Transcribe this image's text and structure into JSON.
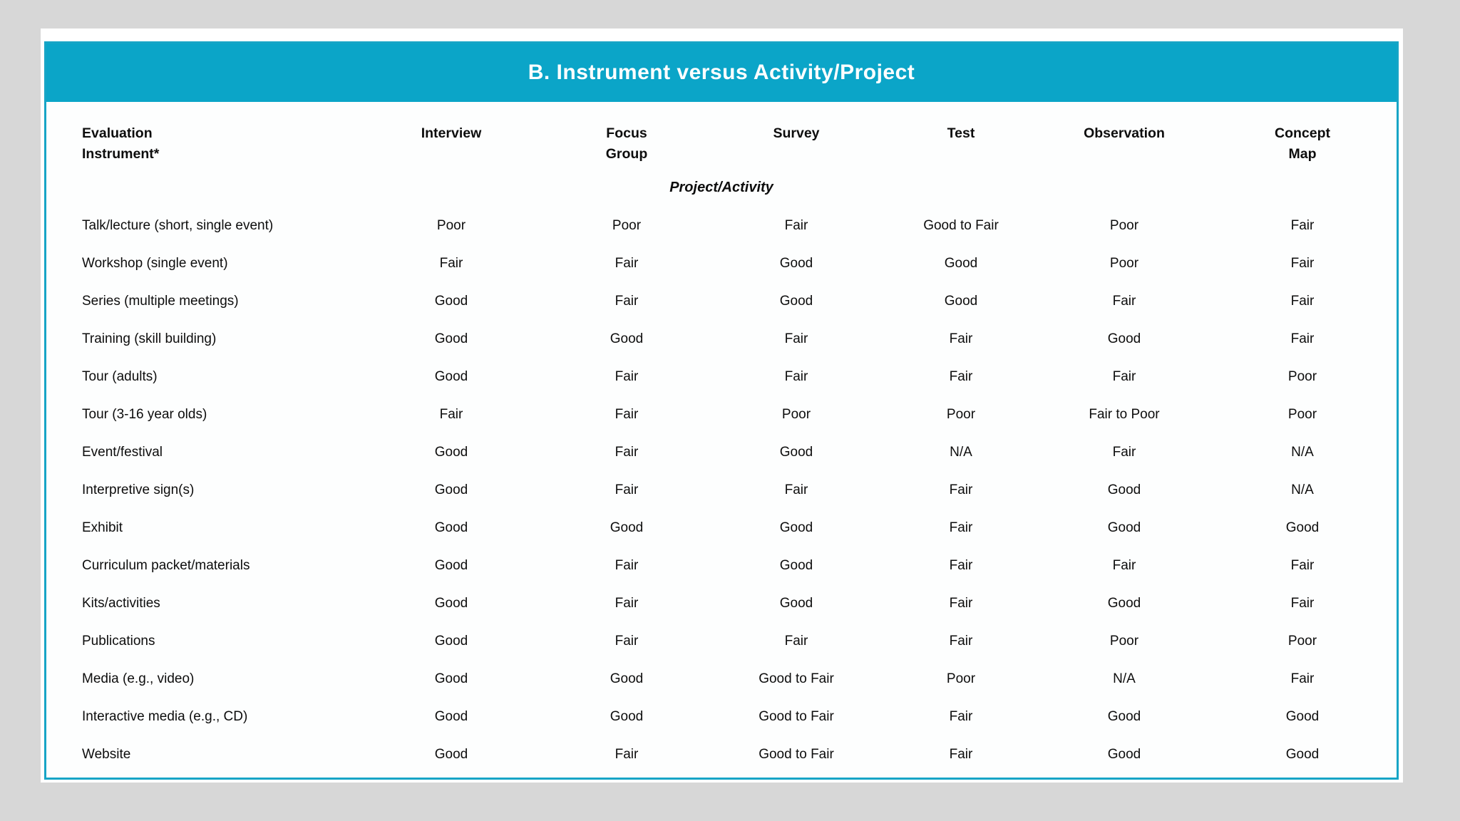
{
  "page": {
    "background_color": "#d7d7d7",
    "card_color": "#ffffff",
    "accent_color": "#0ba5c8"
  },
  "table": {
    "title": "B. Instrument versus Activity/Project",
    "columns": [
      "Evaluation\nInstrument*",
      "Interview",
      "Focus\nGroup",
      "Survey",
      "Test",
      "Observation",
      "Concept\nMap"
    ],
    "section_label": "Project/Activity",
    "rows": [
      {
        "activity": "Talk/lecture (short, single event)",
        "ratings": [
          "Poor",
          "Poor",
          "Fair",
          "Good to Fair",
          "Poor",
          "Fair"
        ]
      },
      {
        "activity": "Workshop (single event)",
        "ratings": [
          "Fair",
          "Fair",
          "Good",
          "Good",
          "Poor",
          "Fair"
        ]
      },
      {
        "activity": "Series (multiple meetings)",
        "ratings": [
          "Good",
          "Fair",
          "Good",
          "Good",
          "Fair",
          "Fair"
        ]
      },
      {
        "activity": "Training (skill building)",
        "ratings": [
          "Good",
          "Good",
          "Fair",
          "Fair",
          "Good",
          "Fair"
        ]
      },
      {
        "activity": "Tour (adults)",
        "ratings": [
          "Good",
          "Fair",
          "Fair",
          "Fair",
          "Fair",
          "Poor"
        ]
      },
      {
        "activity": "Tour (3-16 year olds)",
        "ratings": [
          "Fair",
          "Fair",
          "Poor",
          "Poor",
          "Fair to Poor",
          "Poor"
        ]
      },
      {
        "activity": "Event/festival",
        "ratings": [
          "Good",
          "Fair",
          "Good",
          "N/A",
          "Fair",
          "N/A"
        ]
      },
      {
        "activity": "Interpretive sign(s)",
        "ratings": [
          "Good",
          "Fair",
          "Fair",
          "Fair",
          "Good",
          "N/A"
        ]
      },
      {
        "activity": "Exhibit",
        "ratings": [
          "Good",
          "Good",
          "Good",
          "Fair",
          "Good",
          "Good"
        ]
      },
      {
        "activity": "Curriculum packet/materials",
        "ratings": [
          "Good",
          "Fair",
          "Good",
          "Fair",
          "Fair",
          "Fair"
        ]
      },
      {
        "activity": "Kits/activities",
        "ratings": [
          "Good",
          "Fair",
          "Good",
          "Fair",
          "Good",
          "Fair"
        ]
      },
      {
        "activity": "Publications",
        "ratings": [
          "Good",
          "Fair",
          "Fair",
          "Fair",
          "Poor",
          "Poor"
        ]
      },
      {
        "activity": "Media (e.g., video)",
        "ratings": [
          "Good",
          "Good",
          "Good to Fair",
          "Poor",
          "N/A",
          "Fair"
        ]
      },
      {
        "activity": "Interactive media (e.g., CD)",
        "ratings": [
          "Good",
          "Good",
          "Good to Fair",
          "Fair",
          "Good",
          "Good"
        ]
      },
      {
        "activity": "Website",
        "ratings": [
          "Good",
          "Fair",
          "Good to Fair",
          "Fair",
          "Good",
          "Good"
        ]
      }
    ]
  }
}
